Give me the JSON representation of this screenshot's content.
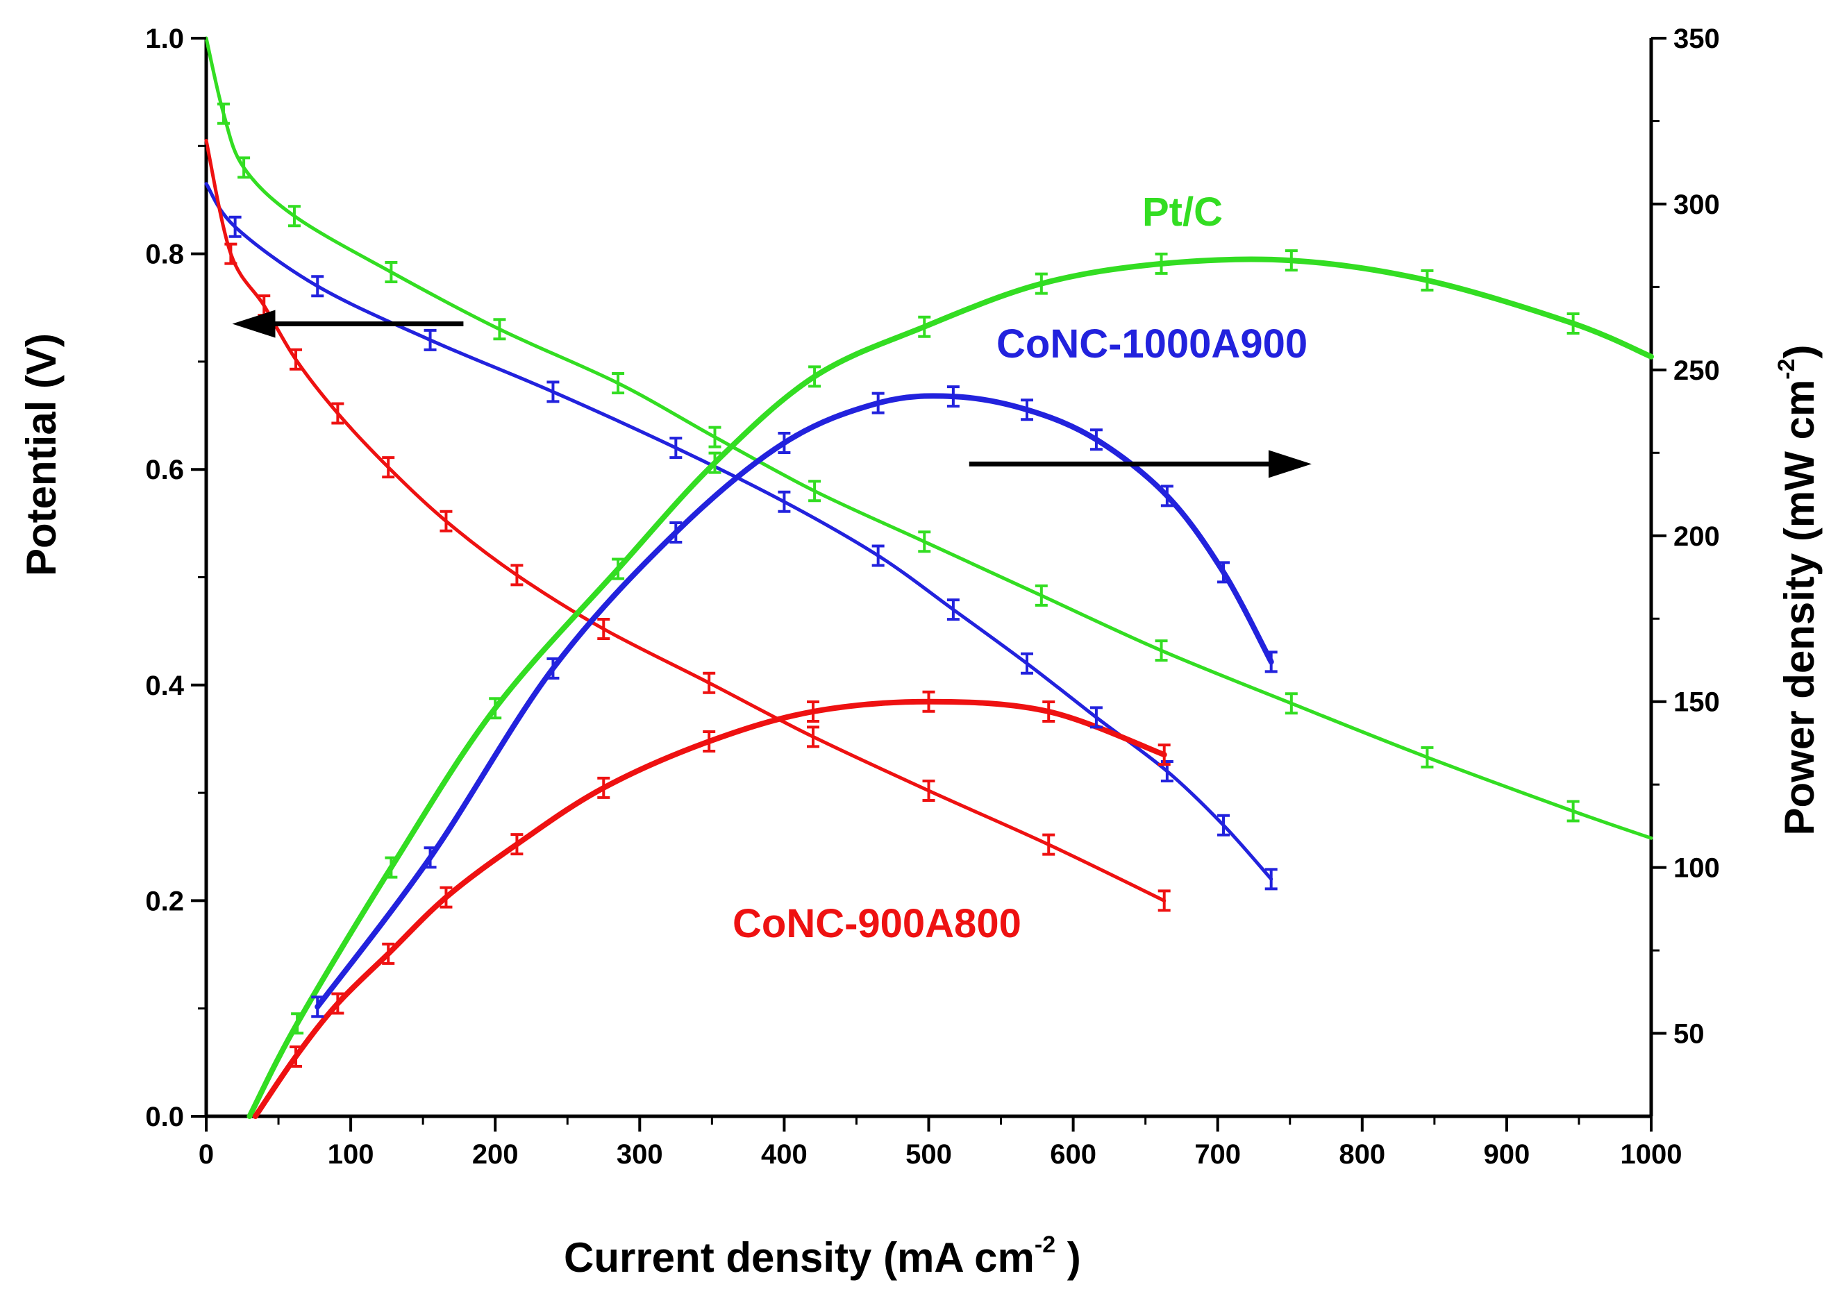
{
  "chart_data": {
    "type": "line",
    "xlabel": "Current density (mA cm",
    "xlabel_sup": "-2",
    "xlabel_close": " )",
    "ylabel_left": "Potential (V)",
    "ylabel_right": "Power density (mW cm",
    "ylabel_right_sup": "-2",
    "ylabel_right_close": ")",
    "xlim": [
      0,
      1000
    ],
    "ylim_left": [
      0.0,
      1.0
    ],
    "ylim_right": [
      25,
      350
    ],
    "x_ticks": [
      "0",
      "100",
      "200",
      "300",
      "400",
      "500",
      "600",
      "700",
      "800",
      "900",
      "1000"
    ],
    "y_left_ticks": [
      "0.0",
      "0.2",
      "0.4",
      "0.6",
      "0.8",
      "1.0"
    ],
    "y_right_ticks": [
      "50",
      "100",
      "150",
      "200",
      "250",
      "300",
      "350"
    ],
    "annotations": [
      {
        "text": "Pt/C",
        "color": "#33dd22"
      },
      {
        "text": "CoNC-1000A900",
        "color": "#2222dd"
      },
      {
        "text": "CoNC-900A800",
        "color": "#ee1111"
      }
    ],
    "arrows": [
      {
        "points_to": "left",
        "x_from": 178,
        "x_to": 18,
        "y_left": 0.735
      },
      {
        "points_to": "right",
        "x_from": 528,
        "x_to": 765,
        "y_left": 0.605
      }
    ],
    "series": [
      {
        "name": "Pt/C polarization",
        "axis": "left",
        "color": "#33dd22",
        "x": [
          0,
          12,
          26,
          61,
          128,
          203,
          285,
          352,
          421,
          497,
          578,
          661,
          751,
          845,
          946,
          1000
        ],
        "y": [
          1.0,
          0.93,
          0.88,
          0.835,
          0.783,
          0.73,
          0.68,
          0.63,
          0.58,
          0.533,
          0.483,
          0.432,
          0.383,
          0.333,
          0.283,
          0.258
        ]
      },
      {
        "name": "CoNC-1000A900 polarization",
        "axis": "left",
        "color": "#2222dd",
        "x": [
          0,
          20,
          77,
          155,
          240,
          325,
          400,
          465,
          517,
          568,
          616,
          665,
          704,
          737
        ],
        "y": [
          0.865,
          0.825,
          0.77,
          0.72,
          0.672,
          0.62,
          0.57,
          0.52,
          0.47,
          0.42,
          0.37,
          0.32,
          0.27,
          0.22
        ]
      },
      {
        "name": "CoNC-900A800 polarization",
        "axis": "left",
        "color": "#ee1111",
        "x": [
          0,
          17,
          40,
          62,
          91,
          126,
          166,
          215,
          275,
          348,
          420,
          500,
          583,
          663
        ],
        "y": [
          0.905,
          0.8,
          0.752,
          0.702,
          0.652,
          0.602,
          0.552,
          0.502,
          0.452,
          0.402,
          0.352,
          0.302,
          0.252,
          0.2
        ]
      },
      {
        "name": "Pt/C power density",
        "axis": "right",
        "color": "#33dd22",
        "x": [
          30,
          63,
          128,
          200,
          285,
          352,
          421,
          497,
          578,
          661,
          751,
          845,
          946,
          1000
        ],
        "y": [
          25,
          53,
          100,
          148,
          190,
          222,
          248,
          263,
          276,
          282,
          283,
          277,
          264,
          254
        ]
      },
      {
        "name": "CoNC-1000A900 power density",
        "axis": "right",
        "color": "#2222dd",
        "x": [
          77,
          155,
          240,
          325,
          400,
          465,
          517,
          568,
          616,
          665,
          704,
          737
        ],
        "y": [
          58,
          103,
          160,
          201,
          228,
          240,
          242,
          238,
          229,
          212,
          189,
          162
        ]
      },
      {
        "name": "CoNC-900A800 power density",
        "axis": "right",
        "color": "#ee1111",
        "x": [
          34,
          62,
          91,
          126,
          166,
          215,
          275,
          348,
          420,
          500,
          583,
          663
        ],
        "y": [
          25,
          43,
          59,
          74,
          91,
          107,
          124,
          138,
          147,
          150,
          147,
          134
        ]
      }
    ]
  }
}
